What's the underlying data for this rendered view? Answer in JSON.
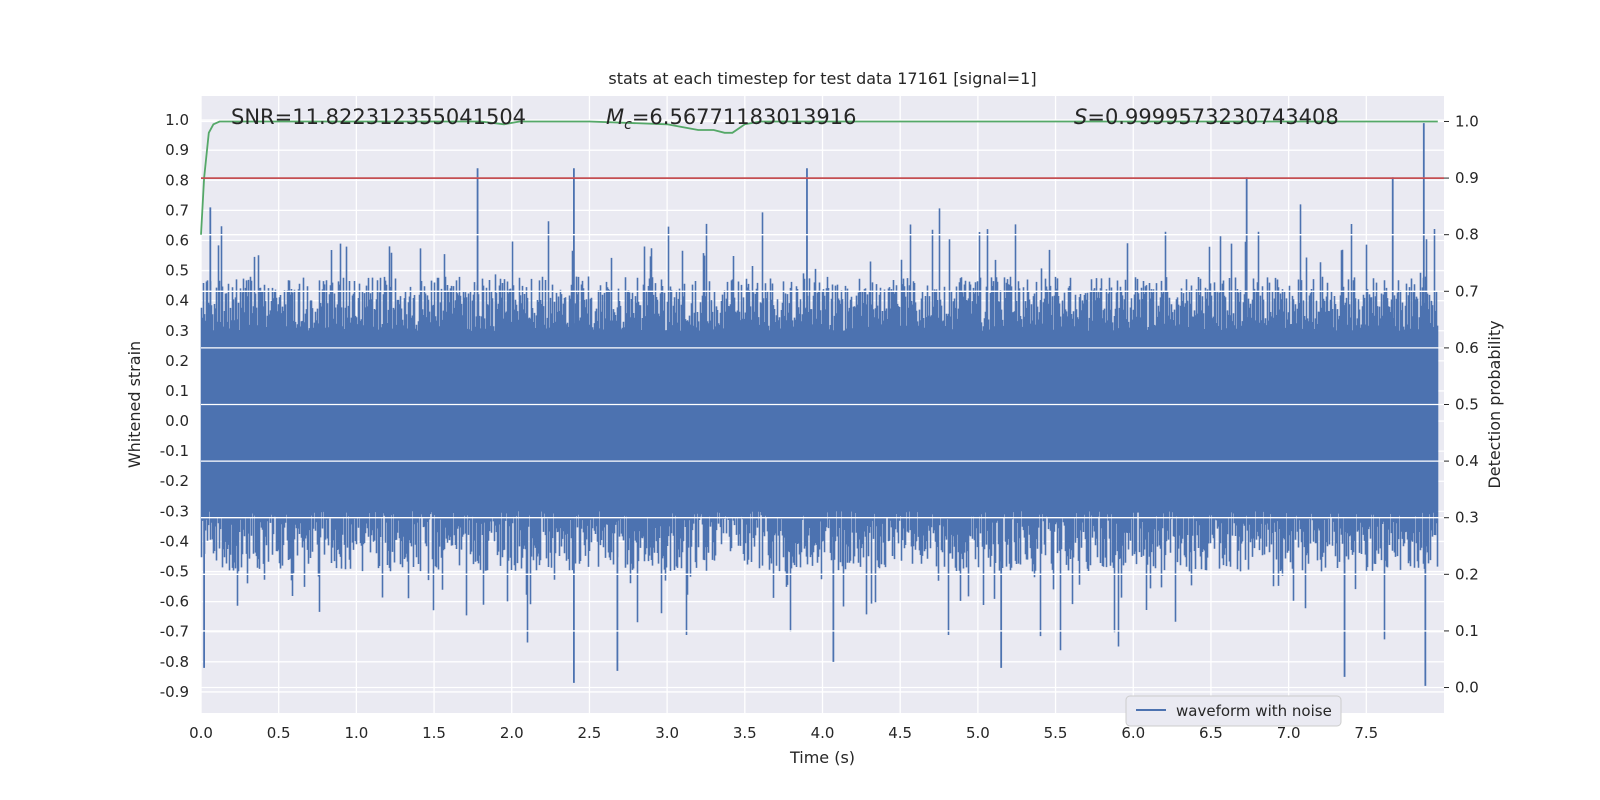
{
  "chart_data": {
    "type": "line",
    "title": "stats at each timestep for test data 17161 [signal=1]",
    "xlabel": "Time (s)",
    "ylabel_left": "Whitened strain",
    "ylabel_right": "Detection probability",
    "xlim": [
      0.0,
      8.0
    ],
    "ylim_left": [
      -0.97,
      1.08
    ],
    "ylim_right": [
      -0.045,
      1.045
    ],
    "x_ticks": [
      "0.0",
      "0.5",
      "1.0",
      "1.5",
      "2.0",
      "2.5",
      "3.0",
      "3.5",
      "4.0",
      "4.5",
      "5.0",
      "5.5",
      "6.0",
      "6.5",
      "7.0",
      "7.5"
    ],
    "y_left_ticks": [
      "1.0",
      "0.9",
      "0.8",
      "0.7",
      "0.6",
      "0.5",
      "0.4",
      "0.3",
      "0.2",
      "0.1",
      "0.0",
      "-0.1",
      "-0.2",
      "-0.3",
      "-0.4",
      "-0.5",
      "-0.6",
      "-0.7",
      "-0.8",
      "-0.9"
    ],
    "y_right_ticks": [
      "1.0",
      "0.9",
      "0.8",
      "0.7",
      "0.6",
      "0.5",
      "0.4",
      "0.3",
      "0.2",
      "0.1",
      "0.0"
    ],
    "grid": true,
    "legend": {
      "placement": "bottom-right",
      "entries": [
        "waveform with noise"
      ]
    },
    "annotations": {
      "snr": "SNR=11.822312355041504",
      "mc_symbol": "M",
      "mc_sub": "c",
      "mc_value": "=6.56771183013916",
      "s_symbol": "S",
      "s_value": "=0.9999573230743408"
    },
    "series": [
      {
        "name": "waveform with noise",
        "axis": "left",
        "color": "#4c72b0",
        "sample_rate_hz": 2048,
        "duration_s": 7.96,
        "envelope_typical": [
          -0.5,
          0.48
        ],
        "notable_peaks": [
          {
            "x": 0.02,
            "y": -0.82
          },
          {
            "x": 0.06,
            "y": 0.71
          },
          {
            "x": 1.78,
            "y": 0.84
          },
          {
            "x": 2.4,
            "y": 0.84
          },
          {
            "x": 2.4,
            "y": -0.87
          },
          {
            "x": 2.68,
            "y": -0.83
          },
          {
            "x": 3.9,
            "y": 0.84
          },
          {
            "x": 4.07,
            "y": -0.8
          },
          {
            "x": 5.15,
            "y": -0.82
          },
          {
            "x": 6.73,
            "y": 0.81
          },
          {
            "x": 7.36,
            "y": -0.85
          },
          {
            "x": 7.67,
            "y": 0.81
          },
          {
            "x": 7.87,
            "y": 0.99
          },
          {
            "x": 7.88,
            "y": -0.88
          }
        ]
      },
      {
        "axis": "right",
        "color": "#55a868",
        "x": [
          0.0,
          0.02,
          0.05,
          0.08,
          0.12,
          0.2,
          0.5,
          1.0,
          1.8,
          1.95,
          2.05,
          2.5,
          3.0,
          3.2,
          3.3,
          3.37,
          3.42,
          3.5,
          3.6,
          4.0,
          5.0,
          6.0,
          7.0,
          7.96
        ],
        "y": [
          0.8,
          0.9,
          0.98,
          0.995,
          1.0,
          1.0,
          1.0,
          1.0,
          1.0,
          0.995,
          1.0,
          1.0,
          0.995,
          0.985,
          0.985,
          0.98,
          0.98,
          0.995,
          1.0,
          1.0,
          1.0,
          1.0,
          1.0,
          1.0
        ]
      },
      {
        "axis": "right",
        "color": "#c44e52",
        "x": [
          0.0,
          8.0
        ],
        "y": [
          0.9,
          0.9
        ]
      }
    ]
  }
}
